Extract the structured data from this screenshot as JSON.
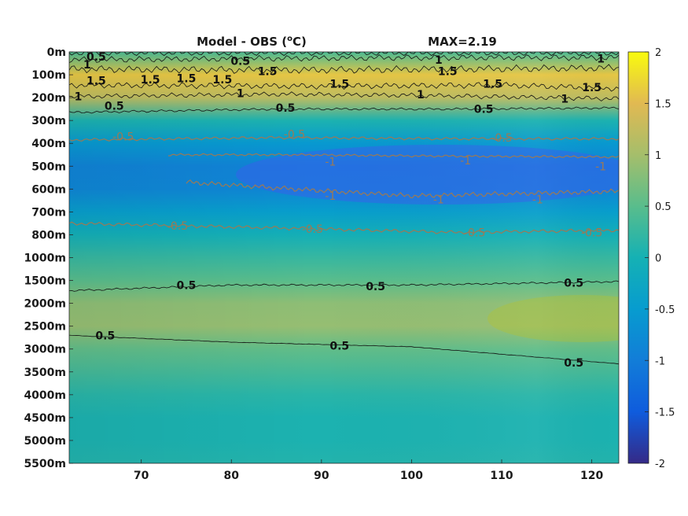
{
  "chart_data": {
    "type": "heatmap",
    "title": "Model - OBS (",
    "title_sup": "o",
    "title_unit": "C)",
    "max_label": "MAX=2.19",
    "xlabel": "",
    "ylabel": "",
    "x_ticks": [
      70,
      80,
      90,
      100,
      110,
      120
    ],
    "xlim": [
      62,
      123
    ],
    "y_levels": [
      "0m",
      "100m",
      "200m",
      "300m",
      "400m",
      "500m",
      "600m",
      "700m",
      "800m",
      "1000m",
      "1500m",
      "2000m",
      "2500m",
      "3000m",
      "3500m",
      "4000m",
      "4500m",
      "5000m",
      "5500m"
    ],
    "colorbar": {
      "ticks": [
        -2,
        -1.5,
        -1,
        -0.5,
        0,
        0.5,
        1,
        1.5,
        2
      ],
      "range": [
        -2,
        2
      ],
      "colormap": "parula"
    },
    "profile": [
      0.4,
      1.6,
      1.2,
      0.05,
      -0.55,
      -0.9,
      -0.85,
      -0.45,
      -0.05,
      0.25,
      0.5,
      0.85,
      0.9,
      0.55,
      0.35,
      0.15,
      0.05,
      0.05,
      0.1
    ],
    "contour_labels": [
      {
        "text": "0.5",
        "x": 65,
        "y": 0.2
      },
      {
        "text": "0.5",
        "x": 81,
        "y": 0.4
      },
      {
        "text": "1",
        "x": 64,
        "y": 0.55
      },
      {
        "text": "1.5",
        "x": 84,
        "y": 0.85
      },
      {
        "text": "1",
        "x": 103,
        "y": 0.35
      },
      {
        "text": "1",
        "x": 121,
        "y": 0.3
      },
      {
        "text": "1.5",
        "x": 65,
        "y": 1.25
      },
      {
        "text": "1.5",
        "x": 71,
        "y": 1.2
      },
      {
        "text": "1.5",
        "x": 75,
        "y": 1.15
      },
      {
        "text": "1.5",
        "x": 79,
        "y": 1.2
      },
      {
        "text": "1.5",
        "x": 92,
        "y": 1.4
      },
      {
        "text": "1.5",
        "x": 104,
        "y": 0.85
      },
      {
        "text": "1.5",
        "x": 109,
        "y": 1.4
      },
      {
        "text": "1.5",
        "x": 120,
        "y": 1.55
      },
      {
        "text": "1",
        "x": 63,
        "y": 1.95
      },
      {
        "text": "1",
        "x": 81,
        "y": 1.8
      },
      {
        "text": "1",
        "x": 101,
        "y": 1.85
      },
      {
        "text": "1",
        "x": 117,
        "y": 2.05
      },
      {
        "text": "0.5",
        "x": 67,
        "y": 2.35
      },
      {
        "text": "0.5",
        "x": 86,
        "y": 2.45
      },
      {
        "text": "0.5",
        "x": 108,
        "y": 2.5
      },
      {
        "text": "-0.5",
        "x": 68,
        "y": 3.7
      },
      {
        "text": "-0.5",
        "x": 87,
        "y": 3.6
      },
      {
        "text": "-0.5",
        "x": 110,
        "y": 3.75
      },
      {
        "text": "-1",
        "x": 91,
        "y": 4.8
      },
      {
        "text": "-1",
        "x": 106,
        "y": 4.75
      },
      {
        "text": "-1",
        "x": 121,
        "y": 5.0
      },
      {
        "text": "-1",
        "x": 91,
        "y": 6.3
      },
      {
        "text": "-1",
        "x": 103,
        "y": 6.45
      },
      {
        "text": "-1",
        "x": 114,
        "y": 6.45
      },
      {
        "text": "-0.5",
        "x": 74,
        "y": 7.6
      },
      {
        "text": "-0.5",
        "x": 89,
        "y": 7.75
      },
      {
        "text": "-0.5",
        "x": 107,
        "y": 7.9
      },
      {
        "text": "-0.5",
        "x": 120,
        "y": 7.9
      },
      {
        "text": "0.5",
        "x": 75,
        "y": 10.2
      },
      {
        "text": "0.5",
        "x": 96,
        "y": 10.25
      },
      {
        "text": "0.5",
        "x": 118,
        "y": 10.1
      },
      {
        "text": "0.5",
        "x": 66,
        "y": 12.4
      },
      {
        "text": "0.5",
        "x": 92,
        "y": 12.85
      },
      {
        "text": "0.5",
        "x": 118,
        "y": 13.6
      }
    ]
  }
}
